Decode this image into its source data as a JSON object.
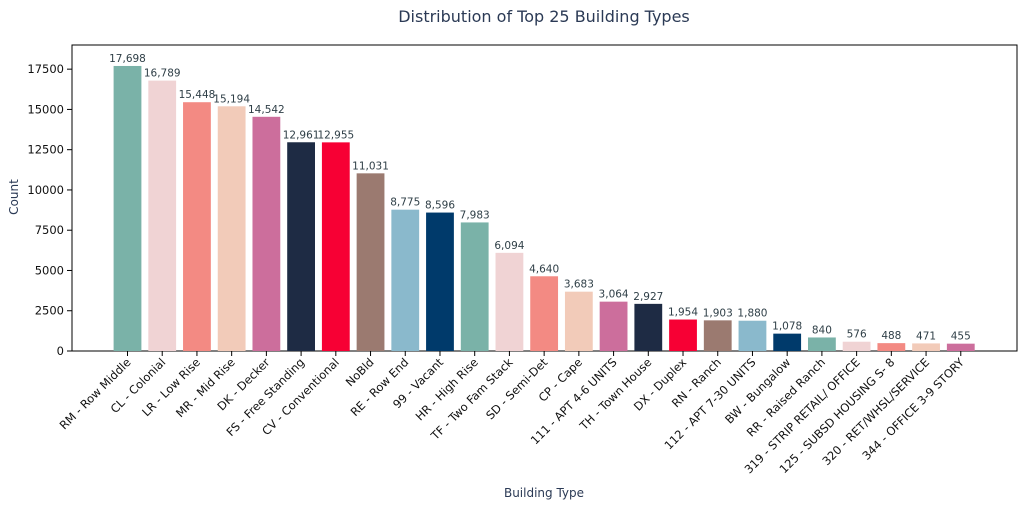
{
  "chart_data": {
    "type": "bar",
    "title": "Distribution of Top 25 Building Types",
    "xlabel": "Building Type",
    "ylabel": "Count",
    "ylim": [
      0,
      19000
    ],
    "yticks": [
      0,
      2500,
      5000,
      7500,
      10000,
      12500,
      15000,
      17500
    ],
    "ytick_labels": [
      "0",
      "2500",
      "5000",
      "7500",
      "10000",
      "12500",
      "15000",
      "17500"
    ],
    "grid": false,
    "categories": [
      "RM - Row Middle",
      "CL - Colonial",
      "LR - Low Rise",
      "MR - Mid Rise",
      "DK - Decker",
      "FS - Free Standing",
      "CV - Conventional",
      "NoBld",
      "RE - Row End",
      "99 - Vacant",
      "HR - High Rise",
      "TF - Two Fam Stack",
      "SD - Semi-Det",
      "CP - Cape",
      "111 - APT 4-6 UNITS",
      "TH - Town House",
      "DX - Duplex",
      "RN - Ranch",
      "112 - APT 7-30 UNITS",
      "BW - Bungalow",
      "RR - Raised Ranch",
      "319 - STRIP RETAIL/ OFFICE",
      "125 - SUBSD HOUSING S- 8",
      "320 - RET/WHSL/SERVICE",
      "344 - OFFICE 3-9 STORY"
    ],
    "values": [
      17698,
      16789,
      15448,
      15194,
      14542,
      12961,
      12955,
      11031,
      8775,
      8596,
      7983,
      6094,
      4640,
      3683,
      3064,
      2927,
      1954,
      1903,
      1880,
      1078,
      840,
      576,
      488,
      471,
      455
    ],
    "value_labels": [
      "17,698",
      "16,789",
      "15,448",
      "15,194",
      "14,542",
      "12,961",
      "12,955",
      "11,031",
      "8,775",
      "8,596",
      "7,983",
      "6,094",
      "4,640",
      "3,683",
      "3,064",
      "2,927",
      "1,954",
      "1,903",
      "1,880",
      "1,078",
      "840",
      "576",
      "488",
      "471",
      "455"
    ],
    "colors": [
      "#7ab2a8",
      "#f0d3d4",
      "#f38a83",
      "#f2cbb9",
      "#cc6e9c",
      "#1e2b44",
      "#f70034",
      "#9b7a70",
      "#8ab9cc",
      "#003a6b"
    ]
  }
}
